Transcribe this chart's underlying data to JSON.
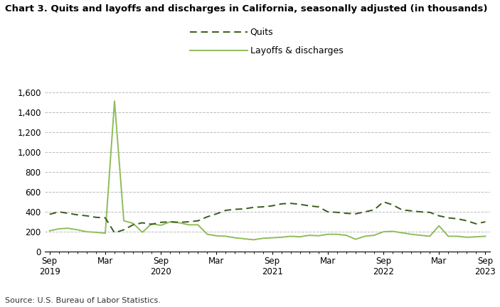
{
  "title": "Chart 3. Quits and layoffs and discharges in California, seasonally adjusted (in thousands)",
  "source": "Source: U.S. Bureau of Labor Statistics.",
  "legend_labels": [
    "Quits",
    "Layoffs & discharges"
  ],
  "quits_color": "#3a5c1a",
  "layoffs_color": "#8fbc5a",
  "background_color": "#ffffff",
  "ylim": [
    0,
    1600
  ],
  "yticks": [
    0,
    200,
    400,
    600,
    800,
    1000,
    1200,
    1400,
    1600
  ],
  "x_tick_positions": [
    0,
    6,
    12,
    18,
    24,
    30,
    36,
    42,
    47
  ],
  "x_tick_top": [
    "Sep",
    "Mar",
    "Sep",
    "Mar",
    "Sep",
    "Mar",
    "Sep",
    "Mar",
    "Sep"
  ],
  "x_tick_year": [
    "2019",
    "",
    "2020",
    "",
    "2021",
    "",
    "2022",
    "",
    "2023"
  ],
  "quits": [
    375,
    400,
    385,
    370,
    360,
    345,
    340,
    190,
    220,
    270,
    290,
    275,
    295,
    300,
    295,
    300,
    310,
    350,
    380,
    415,
    425,
    430,
    445,
    450,
    460,
    480,
    485,
    475,
    460,
    450,
    400,
    395,
    385,
    380,
    400,
    420,
    500,
    470,
    420,
    410,
    400,
    395,
    360,
    340,
    330,
    310,
    280,
    300
  ],
  "layoffs": [
    210,
    230,
    235,
    220,
    200,
    195,
    185,
    1510,
    310,
    285,
    195,
    280,
    265,
    300,
    290,
    270,
    270,
    175,
    160,
    155,
    140,
    130,
    120,
    135,
    140,
    145,
    155,
    150,
    165,
    160,
    175,
    175,
    165,
    125,
    155,
    165,
    200,
    205,
    190,
    175,
    165,
    155,
    260,
    155,
    155,
    145,
    150,
    155
  ]
}
